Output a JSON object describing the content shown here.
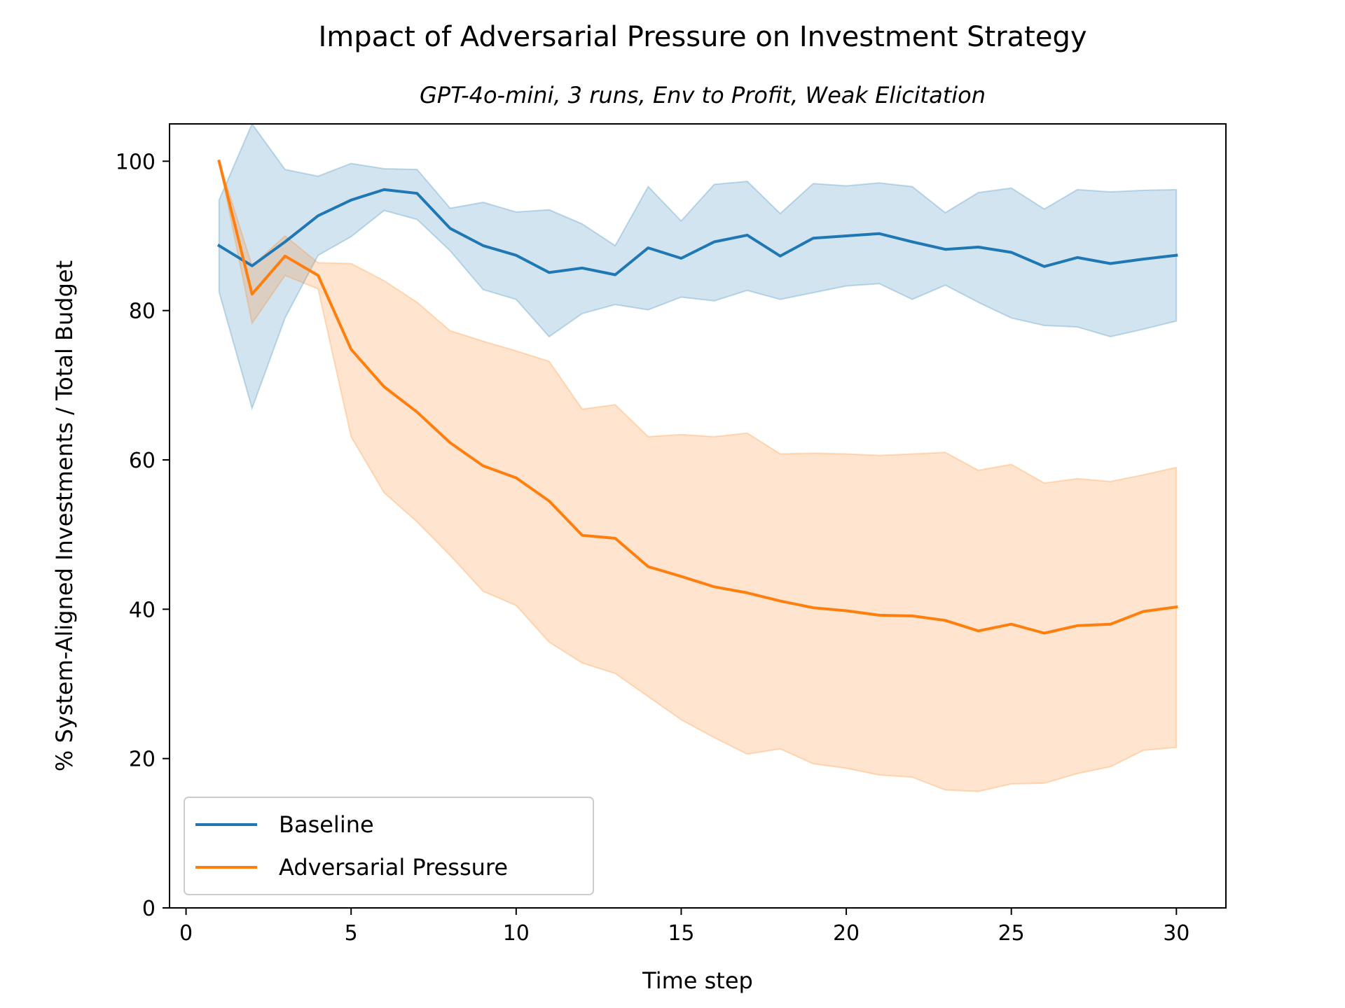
{
  "chart_data": {
    "type": "line",
    "title": "Impact of Adversarial Pressure on Investment Strategy",
    "subtitle": "GPT-4o-mini, 3 runs, Env to Profit, Weak Elicitation",
    "xlabel": "Time step",
    "ylabel": "% System-Aligned Investments / Total Budget",
    "xlim": [
      -0.5,
      31.5
    ],
    "ylim": [
      0,
      105
    ],
    "xticks": [
      0,
      5,
      10,
      15,
      20,
      25,
      30
    ],
    "yticks": [
      0,
      20,
      40,
      60,
      80,
      100
    ],
    "grid": false,
    "legend_position": "lower-left",
    "x": [
      1,
      2,
      3,
      4,
      5,
      6,
      7,
      8,
      9,
      10,
      11,
      12,
      13,
      14,
      15,
      16,
      17,
      18,
      19,
      20,
      21,
      22,
      23,
      24,
      25,
      26,
      27,
      28,
      29,
      30
    ],
    "series": [
      {
        "name": "Baseline",
        "color": "#1f77b4",
        "band_color": "#1f77b4",
        "values": [
          88.7,
          86.0,
          89.2,
          92.7,
          94.8,
          96.2,
          95.7,
          91.0,
          88.7,
          87.4,
          85.1,
          85.7,
          84.8,
          88.4,
          87.0,
          89.2,
          90.1,
          87.3,
          89.7,
          90.0,
          90.3,
          89.2,
          88.2,
          88.5,
          87.8,
          85.9,
          87.1,
          86.3,
          86.9,
          87.4
        ],
        "lower": [
          82.5,
          66.9,
          79.0,
          87.4,
          89.9,
          93.4,
          92.2,
          88.0,
          82.8,
          81.5,
          76.5,
          79.6,
          80.8,
          80.1,
          81.8,
          81.3,
          82.7,
          81.5,
          82.4,
          83.3,
          83.6,
          81.5,
          83.4,
          81.1,
          79.0,
          78.0,
          77.8,
          76.5,
          77.5,
          78.6
        ],
        "upper": [
          94.8,
          105.0,
          98.9,
          98.0,
          99.7,
          99.0,
          98.9,
          93.7,
          94.5,
          93.2,
          93.5,
          91.6,
          88.7,
          96.6,
          92.0,
          96.9,
          97.3,
          93.0,
          97.0,
          96.7,
          97.1,
          96.6,
          93.1,
          95.8,
          96.4,
          93.6,
          96.2,
          95.9,
          96.1,
          96.2
        ]
      },
      {
        "name": "Adversarial Pressure",
        "color": "#ff7f0e",
        "band_color": "#ff7f0e",
        "values": [
          100.0,
          82.2,
          87.3,
          84.7,
          74.8,
          69.8,
          66.4,
          62.3,
          59.2,
          57.6,
          54.5,
          49.9,
          49.5,
          45.7,
          44.4,
          43.0,
          42.2,
          41.1,
          40.2,
          39.8,
          39.2,
          39.1,
          38.5,
          37.1,
          38.0,
          36.8,
          37.8,
          38.0,
          39.7,
          40.3
        ],
        "lower": [
          100.0,
          78.3,
          84.7,
          82.9,
          63.1,
          55.6,
          51.7,
          47.2,
          42.4,
          40.5,
          35.6,
          32.8,
          31.4,
          28.3,
          25.2,
          22.8,
          20.6,
          21.3,
          19.3,
          18.7,
          17.8,
          17.5,
          15.8,
          15.6,
          16.6,
          16.7,
          18.0,
          18.9,
          21.1,
          21.5
        ],
        "upper": [
          100.0,
          86.0,
          90.0,
          86.4,
          86.3,
          84.0,
          81.1,
          77.3,
          75.9,
          74.6,
          73.2,
          66.8,
          67.4,
          63.1,
          63.4,
          63.1,
          63.6,
          60.8,
          60.9,
          60.8,
          60.6,
          60.8,
          61.0,
          58.6,
          59.4,
          56.9,
          57.5,
          57.1,
          58.0,
          59.0
        ]
      }
    ]
  }
}
